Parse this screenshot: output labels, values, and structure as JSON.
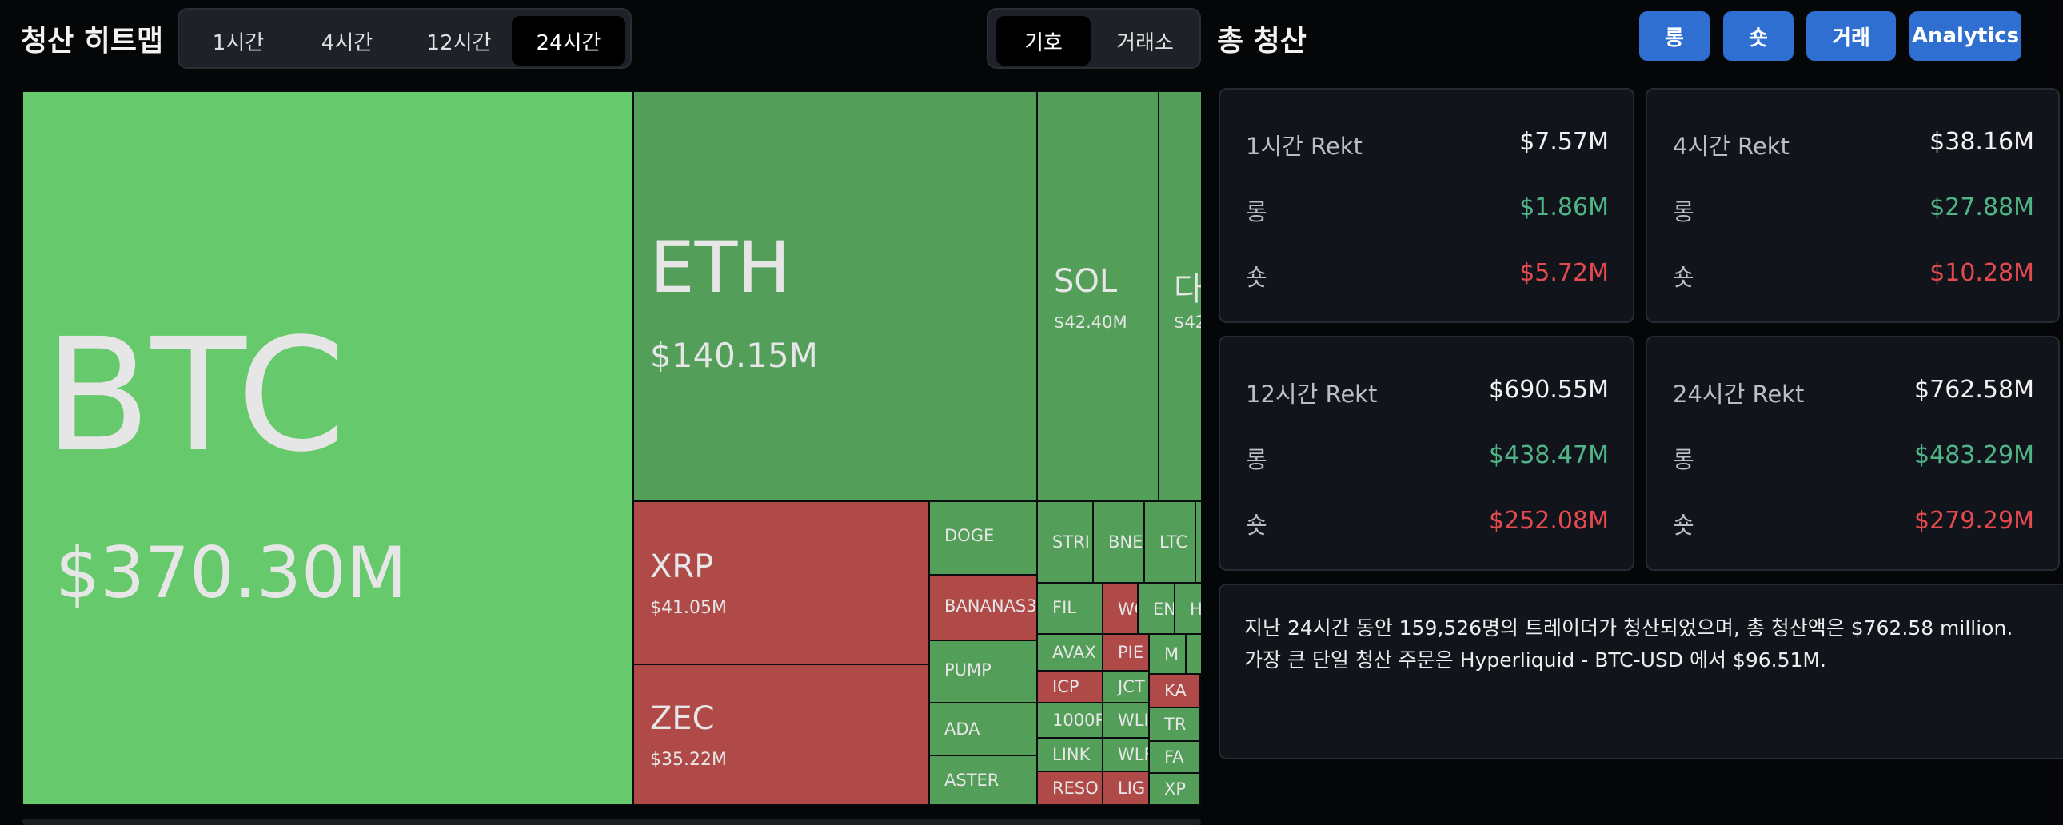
{
  "header": {
    "title": "청산 히트맵",
    "time_tabs": [
      "1시간",
      "4시간",
      "12시간",
      "24시간"
    ],
    "active_time_tab": "24시간",
    "group_tabs": [
      "기호",
      "거래소"
    ],
    "active_group_tab": "기호",
    "summary_title": "총 청산",
    "buttons": [
      "롱",
      "숏",
      "거래",
      "Analytics"
    ]
  },
  "heatmap": {
    "large": [
      {
        "symbol": "BTC",
        "value": "$370.30M"
      },
      {
        "symbol": "ETH",
        "value": "$140.15M"
      },
      {
        "symbol": "SOL",
        "value": "$42.40M"
      },
      {
        "symbol": "다",
        "value": "$42"
      },
      {
        "symbol": "XRP",
        "value": "$41.05M"
      },
      {
        "symbol": "ZEC",
        "value": "$35.22M"
      }
    ],
    "small": [
      "DOGE",
      "BANANAS3",
      "PUMP",
      "ADA",
      "ASTER",
      "STRI",
      "BNE",
      "LTC",
      "FIL",
      "WC",
      "EN",
      "H",
      "AVAX",
      "PIE",
      "M",
      "ICP",
      "JCT",
      "KA",
      "1000P",
      "WLI",
      "TR",
      "LINK",
      "WLF",
      "FA",
      "RESO",
      "LIG",
      "XP"
    ]
  },
  "summary": [
    {
      "title": "1시간 Rekt",
      "total": "$7.57M",
      "long_label": "롱",
      "long": "$1.86M",
      "short_label": "숏",
      "short": "$5.72M"
    },
    {
      "title": "4시간 Rekt",
      "total": "$38.16M",
      "long_label": "롱",
      "long": "$27.88M",
      "short_label": "숏",
      "short": "$10.28M"
    },
    {
      "title": "12시간 Rekt",
      "total": "$690.55M",
      "long_label": "롱",
      "long": "$438.47M",
      "short_label": "숏",
      "short": "$252.08M"
    },
    {
      "title": "24시간 Rekt",
      "total": "$762.58M",
      "long_label": "롱",
      "long": "$483.29M",
      "short_label": "숏",
      "short": "$279.29M"
    }
  ],
  "info": {
    "line1": "지난 24시간 동안 159,526명의 트레이더가 청산되었으며, 총 청산액은 $762.58 million.",
    "line2": "가장 큰 단일 청산 주문은 Hyperliquid - BTC-USD 에서 $96.51M."
  }
}
